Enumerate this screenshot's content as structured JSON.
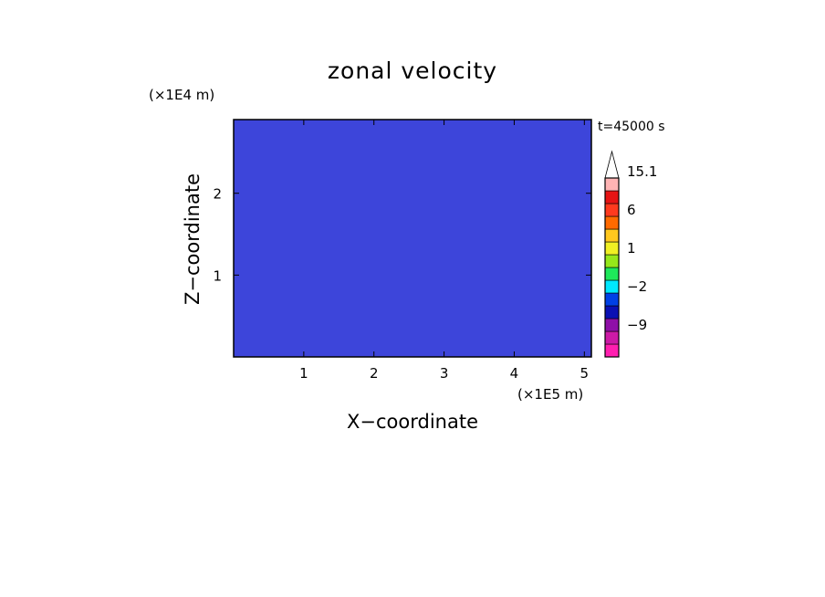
{
  "chart_data": {
    "type": "heatmap",
    "title": "zonal velocity",
    "xlabel": "X−coordinate",
    "ylabel": "Z−coordinate",
    "x_unit": "(×1E5 m)",
    "y_unit": "(×1E4 m)",
    "time_label": "t=45000 s",
    "xlim": [
      0,
      5.1
    ],
    "ylim": [
      0,
      2.9
    ],
    "x_ticks": [
      1,
      2,
      3,
      4,
      5
    ],
    "x_tick_labels": [
      "1",
      "2",
      "3",
      "4",
      "5"
    ],
    "y_ticks": [
      1,
      2
    ],
    "y_tick_labels": [
      "1",
      "2"
    ],
    "colorbar": {
      "levels": [
        -15,
        -12,
        -9,
        -6,
        -3,
        -2,
        -1,
        0,
        1,
        2,
        3,
        6,
        9,
        12,
        15.1
      ],
      "labels": [
        "15.1",
        "6",
        "1",
        "−2",
        "−9"
      ],
      "colors": [
        "#ff1fb0",
        "#cc1aa6",
        "#8f10a8",
        "#0a10b4",
        "#0040e6",
        "#00e8ff",
        "#1ee85a",
        "#96e81a",
        "#f0f023",
        "#ffc81e",
        "#ff6a00",
        "#ff3a1e",
        "#e61414",
        "#ffb4b4",
        "#ffffff"
      ]
    },
    "grid": false,
    "legend": "right"
  }
}
